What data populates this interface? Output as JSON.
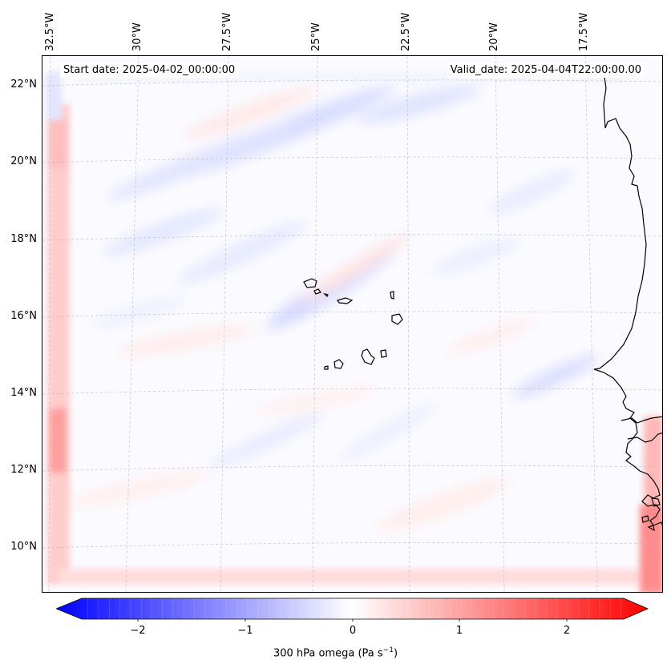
{
  "map": {
    "start_label": "Start date: 2025-04-02_00:00:00",
    "valid_label": "Valid_date: 2025-04-04T22:00:00.00",
    "lon_labels": [
      "32.5°W",
      "30°W",
      "27.5°W",
      "25°W",
      "22.5°W",
      "20°W",
      "17.5°W"
    ],
    "lat_labels": [
      "22°N",
      "20°N",
      "18°N",
      "16°N",
      "14°N",
      "12°N",
      "10°N"
    ],
    "features": [
      "cape-verde-islands",
      "west-africa-coastline"
    ]
  },
  "colorbar": {
    "title": "300 hPa omega (Pa s",
    "title_sup": "−1",
    "title_end": ")",
    "ticks": [
      "−2",
      "−1",
      "0",
      "1",
      "2"
    ],
    "tick_values": [
      -2,
      -1,
      0,
      1,
      2
    ],
    "range": [
      -2.5,
      2.5
    ],
    "colors": {
      "min": "#0000ff",
      "mid": "#ffffff",
      "max": "#ff0000"
    }
  }
}
